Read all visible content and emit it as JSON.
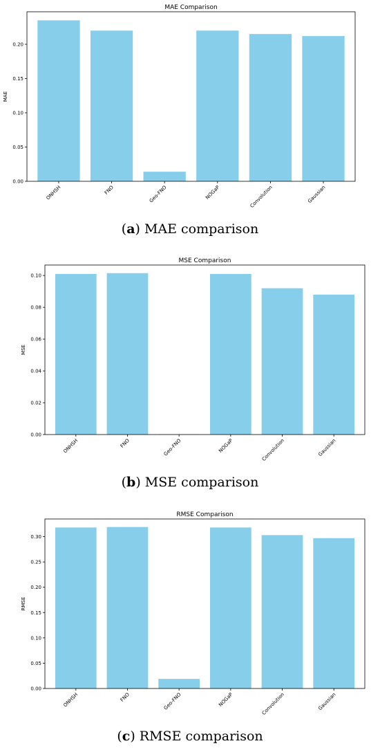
{
  "bar_color": "#87CEEB",
  "chart_data": [
    {
      "type": "bar",
      "title": "MAE Comparison",
      "ylabel": "MAE",
      "xlabel": "",
      "categories": [
        "ONHSH",
        "FNO",
        "Geo-FNO",
        "NOGaP",
        "Convolution",
        "Gaussian"
      ],
      "values": [
        0.235,
        0.22,
        0.014,
        0.22,
        0.215,
        0.212
      ],
      "ylim": [
        0,
        0.2475
      ],
      "yticks": [
        0.0,
        0.05,
        0.1,
        0.15,
        0.2
      ],
      "ytick_labels": [
        "0.00",
        "0.05",
        "0.10",
        "0.15",
        "0.20"
      ],
      "caption_letter": "a",
      "caption_text": "MAE comparison"
    },
    {
      "type": "bar",
      "title": "MSE Comparison",
      "ylabel": "MSE",
      "xlabel": "",
      "categories": [
        "ONHSH",
        "FNO",
        "Geo-FNO",
        "NOGaP",
        "Convolution",
        "Gaussian"
      ],
      "values": [
        0.101,
        0.1015,
        0.0002,
        0.101,
        0.092,
        0.088
      ],
      "ylim": [
        0,
        0.1066
      ],
      "yticks": [
        0.0,
        0.02,
        0.04,
        0.06,
        0.08,
        0.1
      ],
      "ytick_labels": [
        "0.00",
        "0.02",
        "0.04",
        "0.06",
        "0.08",
        "0.10"
      ],
      "caption_letter": "b",
      "caption_text": "MSE comparison"
    },
    {
      "type": "bar",
      "title": "RMSE Comparison",
      "ylabel": "RMSE",
      "xlabel": "",
      "categories": [
        "ONHSH",
        "FNO",
        "Geo-FNO",
        "NOGaP",
        "Convolution",
        "Gaussian"
      ],
      "values": [
        0.318,
        0.319,
        0.019,
        0.318,
        0.303,
        0.297
      ],
      "ylim": [
        0,
        0.3349
      ],
      "yticks": [
        0.0,
        0.05,
        0.1,
        0.15,
        0.2,
        0.25,
        0.3
      ],
      "ytick_labels": [
        "0.00",
        "0.05",
        "0.10",
        "0.15",
        "0.20",
        "0.25",
        "0.30"
      ],
      "caption_letter": "c",
      "caption_text": "RMSE comparison"
    }
  ]
}
